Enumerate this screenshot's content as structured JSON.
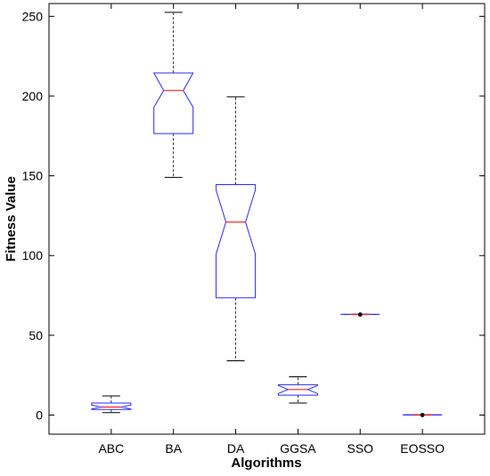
{
  "chart_data": {
    "type": "box",
    "xlabel": "Algorithms",
    "ylabel": "Fitness Value",
    "ylim": [
      -12,
      258
    ],
    "yticks": [
      0,
      50,
      100,
      150,
      200,
      250
    ],
    "categories": [
      "ABC",
      "BA",
      "DA",
      "GGSA",
      "SSO",
      "EOSSO"
    ],
    "boxes": [
      {
        "category": "ABC",
        "whisker_low": 1.5,
        "q1": 3.5,
        "median": 5,
        "q3": 7.5,
        "whisker_high": 12,
        "notch_low": 3.8,
        "notch_high": 6.2
      },
      {
        "category": "BA",
        "whisker_low": 149,
        "q1": 176.5,
        "median": 203.5,
        "q3": 214.5,
        "whisker_high": 252.5,
        "notch_low": 193,
        "notch_high": 214.5
      },
      {
        "category": "DA",
        "whisker_low": 34,
        "q1": 73.5,
        "median": 121,
        "q3": 144.5,
        "whisker_high": 199.5,
        "notch_low": 101,
        "notch_high": 141
      },
      {
        "category": "GGSA",
        "whisker_low": 7.5,
        "q1": 12.5,
        "median": 16,
        "q3": 19,
        "whisker_high": 24,
        "notch_low": 13.5,
        "notch_high": 18.5
      },
      {
        "category": "SSO",
        "whisker_low": 63,
        "q1": 63,
        "median": 63,
        "q3": 63.2,
        "whisker_high": 63.2,
        "notch_low": 63,
        "notch_high": 63.2,
        "outliers": [
          63
        ]
      },
      {
        "category": "EOSSO",
        "whisker_low": 0,
        "q1": 0,
        "median": 0,
        "q3": 0.2,
        "whisker_high": 0.2,
        "notch_low": 0,
        "notch_high": 0.2,
        "outliers": [
          0
        ]
      }
    ],
    "colors": {
      "box": "#2b2bff",
      "median": "#ff2020",
      "whisker": "#000000",
      "outlier": "#000000",
      "axis": "#000000"
    }
  }
}
